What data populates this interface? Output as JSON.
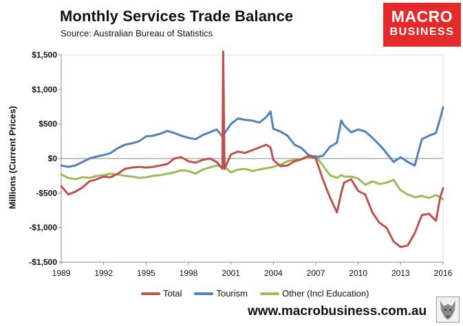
{
  "header": {
    "title": "Monthly Services Trade Balance",
    "subtitle": "Source: Australian Bureau of Statistics"
  },
  "logo": {
    "line1": "MACRO",
    "line2": "BUSINESS"
  },
  "footer": {
    "website": "www.macrobusiness.com.au"
  },
  "colors": {
    "total": "#c0504d",
    "tourism": "#4f81bd",
    "other": "#9bbb59",
    "brand": "#e42a2b"
  },
  "chart_data": {
    "type": "line",
    "title": "Monthly Services Trade Balance",
    "xlabel": "",
    "ylabel": "Millions (Current Prices)",
    "xlim": [
      1989,
      2016
    ],
    "ylim": [
      -1500,
      1500
    ],
    "x_ticks": [
      1989,
      1992,
      1995,
      1998,
      2001,
      2004,
      2007,
      2010,
      2013,
      2016
    ],
    "x_tick_labels": [
      "1989",
      "1992",
      "1995",
      "1998",
      "2001",
      "2004",
      "2007",
      "2010",
      "2013",
      "2016"
    ],
    "y_ticks": [
      -1500,
      -1000,
      -500,
      0,
      500,
      1000,
      1500
    ],
    "y_tick_labels": [
      "-$1,500",
      "-$1,000",
      "-$500",
      "$0",
      "$500",
      "$1,000",
      "$1,500"
    ],
    "grid": false,
    "legend_position": "bottom",
    "series": [
      {
        "name": "Total",
        "color": "#c0504d",
        "points": [
          [
            1989.0,
            -400
          ],
          [
            1989.5,
            -520
          ],
          [
            1990.0,
            -480
          ],
          [
            1990.5,
            -420
          ],
          [
            1991.0,
            -330
          ],
          [
            1991.5,
            -300
          ],
          [
            1992.0,
            -260
          ],
          [
            1992.5,
            -270
          ],
          [
            1993.0,
            -220
          ],
          [
            1993.5,
            -150
          ],
          [
            1994.0,
            -130
          ],
          [
            1994.5,
            -120
          ],
          [
            1995.0,
            -130
          ],
          [
            1995.5,
            -120
          ],
          [
            1996.0,
            -100
          ],
          [
            1996.5,
            -80
          ],
          [
            1997.0,
            0
          ],
          [
            1997.5,
            20
          ],
          [
            1998.0,
            -40
          ],
          [
            1998.5,
            -60
          ],
          [
            1999.0,
            -20
          ],
          [
            1999.5,
            0
          ],
          [
            2000.0,
            -50
          ],
          [
            2000.4,
            -150
          ],
          [
            2000.45,
            1550
          ],
          [
            2000.55,
            -150
          ],
          [
            2001.0,
            60
          ],
          [
            2001.5,
            100
          ],
          [
            2002.0,
            80
          ],
          [
            2002.5,
            120
          ],
          [
            2003.0,
            160
          ],
          [
            2003.5,
            200
          ],
          [
            2003.8,
            160
          ],
          [
            2004.0,
            -20
          ],
          [
            2004.5,
            -110
          ],
          [
            2005.0,
            -100
          ],
          [
            2005.5,
            -40
          ],
          [
            2006.0,
            -10
          ],
          [
            2006.5,
            40
          ],
          [
            2007.0,
            0
          ],
          [
            2007.5,
            -300
          ],
          [
            2008.0,
            -560
          ],
          [
            2008.5,
            -780
          ],
          [
            2008.8,
            -500
          ],
          [
            2009.0,
            -350
          ],
          [
            2009.5,
            -300
          ],
          [
            2010.0,
            -470
          ],
          [
            2010.5,
            -520
          ],
          [
            2011.0,
            -780
          ],
          [
            2011.5,
            -930
          ],
          [
            2012.0,
            -1000
          ],
          [
            2012.5,
            -1200
          ],
          [
            2013.0,
            -1280
          ],
          [
            2013.5,
            -1260
          ],
          [
            2014.0,
            -1080
          ],
          [
            2014.5,
            -820
          ],
          [
            2015.0,
            -800
          ],
          [
            2015.5,
            -900
          ],
          [
            2015.8,
            -560
          ],
          [
            2016.0,
            -430
          ]
        ]
      },
      {
        "name": "Tourism",
        "color": "#4f81bd",
        "points": [
          [
            1989.0,
            -100
          ],
          [
            1989.5,
            -120
          ],
          [
            1990.0,
            -100
          ],
          [
            1990.5,
            -50
          ],
          [
            1991.0,
            0
          ],
          [
            1991.5,
            30
          ],
          [
            1992.0,
            50
          ],
          [
            1992.5,
            80
          ],
          [
            1993.0,
            150
          ],
          [
            1993.5,
            200
          ],
          [
            1994.0,
            220
          ],
          [
            1994.5,
            250
          ],
          [
            1995.0,
            320
          ],
          [
            1995.5,
            330
          ],
          [
            1996.0,
            360
          ],
          [
            1996.5,
            400
          ],
          [
            1997.0,
            370
          ],
          [
            1997.5,
            330
          ],
          [
            1998.0,
            300
          ],
          [
            1998.5,
            280
          ],
          [
            1999.0,
            340
          ],
          [
            1999.5,
            380
          ],
          [
            2000.0,
            420
          ],
          [
            2000.4,
            320
          ],
          [
            2001.0,
            500
          ],
          [
            2001.5,
            580
          ],
          [
            2002.0,
            560
          ],
          [
            2002.5,
            550
          ],
          [
            2003.0,
            520
          ],
          [
            2003.5,
            600
          ],
          [
            2003.8,
            680
          ],
          [
            2004.0,
            430
          ],
          [
            2004.5,
            390
          ],
          [
            2005.0,
            330
          ],
          [
            2005.5,
            200
          ],
          [
            2006.0,
            150
          ],
          [
            2006.5,
            50
          ],
          [
            2007.0,
            20
          ],
          [
            2007.5,
            40
          ],
          [
            2008.0,
            170
          ],
          [
            2008.5,
            230
          ],
          [
            2008.8,
            550
          ],
          [
            2009.0,
            480
          ],
          [
            2009.5,
            380
          ],
          [
            2010.0,
            420
          ],
          [
            2010.5,
            390
          ],
          [
            2011.0,
            300
          ],
          [
            2011.5,
            200
          ],
          [
            2012.0,
            80
          ],
          [
            2012.5,
            -50
          ],
          [
            2013.0,
            20
          ],
          [
            2013.5,
            -50
          ],
          [
            2014.0,
            -100
          ],
          [
            2014.5,
            280
          ],
          [
            2015.0,
            330
          ],
          [
            2015.5,
            370
          ],
          [
            2015.8,
            580
          ],
          [
            2016.0,
            740
          ]
        ]
      },
      {
        "name": "Other (Incl Education)",
        "color": "#9bbb59",
        "points": [
          [
            1989.0,
            -230
          ],
          [
            1989.5,
            -280
          ],
          [
            1990.0,
            -300
          ],
          [
            1990.5,
            -270
          ],
          [
            1991.0,
            -280
          ],
          [
            1991.5,
            -250
          ],
          [
            1992.0,
            -240
          ],
          [
            1992.5,
            -220
          ],
          [
            1993.0,
            -230
          ],
          [
            1993.5,
            -250
          ],
          [
            1994.0,
            -260
          ],
          [
            1994.5,
            -280
          ],
          [
            1995.0,
            -270
          ],
          [
            1995.5,
            -250
          ],
          [
            1996.0,
            -240
          ],
          [
            1996.5,
            -220
          ],
          [
            1997.0,
            -200
          ],
          [
            1997.5,
            -170
          ],
          [
            1998.0,
            -180
          ],
          [
            1998.5,
            -220
          ],
          [
            1999.0,
            -160
          ],
          [
            1999.5,
            -130
          ],
          [
            2000.0,
            -100
          ],
          [
            2000.4,
            -120
          ],
          [
            2000.45,
            1170
          ],
          [
            2000.55,
            -120
          ],
          [
            2001.0,
            -200
          ],
          [
            2001.5,
            -160
          ],
          [
            2002.0,
            -150
          ],
          [
            2002.5,
            -180
          ],
          [
            2003.0,
            -160
          ],
          [
            2003.5,
            -140
          ],
          [
            2004.0,
            -120
          ],
          [
            2004.5,
            -90
          ],
          [
            2005.0,
            -40
          ],
          [
            2005.5,
            -20
          ],
          [
            2006.0,
            -10
          ],
          [
            2006.5,
            20
          ],
          [
            2007.0,
            40
          ],
          [
            2007.5,
            -100
          ],
          [
            2008.0,
            -240
          ],
          [
            2008.5,
            -280
          ],
          [
            2008.8,
            -240
          ],
          [
            2009.0,
            -260
          ],
          [
            2009.5,
            -260
          ],
          [
            2010.0,
            -290
          ],
          [
            2010.5,
            -380
          ],
          [
            2011.0,
            -330
          ],
          [
            2011.5,
            -370
          ],
          [
            2012.0,
            -350
          ],
          [
            2012.5,
            -310
          ],
          [
            2013.0,
            -460
          ],
          [
            2013.5,
            -520
          ],
          [
            2014.0,
            -560
          ],
          [
            2014.5,
            -540
          ],
          [
            2015.0,
            -570
          ],
          [
            2015.5,
            -530
          ],
          [
            2015.8,
            -560
          ],
          [
            2016.0,
            -590
          ]
        ]
      }
    ]
  }
}
